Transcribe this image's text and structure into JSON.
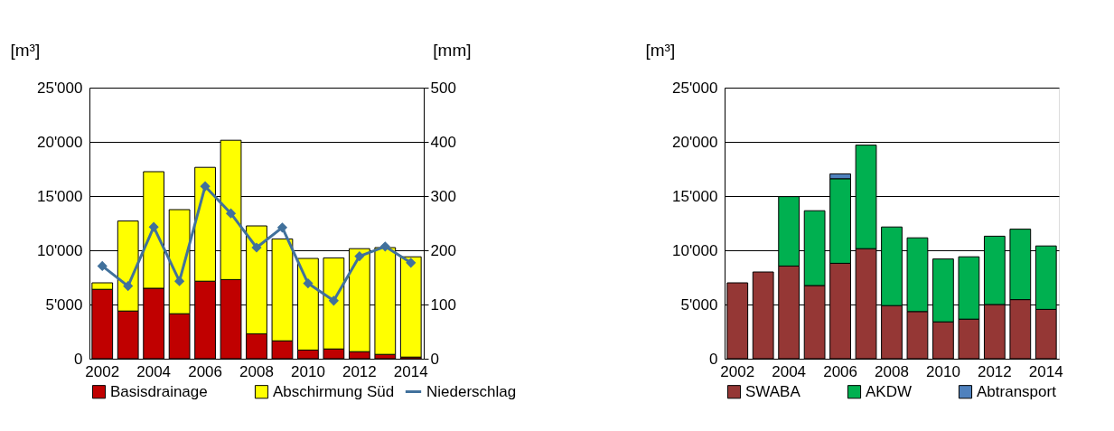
{
  "chart_data": [
    {
      "type": "bar",
      "stacked": true,
      "categories": [
        "2002",
        null,
        "2004",
        null,
        "2006",
        null,
        "2008",
        null,
        "2010",
        null,
        "2012",
        null,
        "2014"
      ],
      "ylabel": "[m³]",
      "y2label": "[mm]",
      "ylim": [
        0,
        25000
      ],
      "yticks": [
        0,
        {
          "value": 5000,
          "label": "5'000"
        },
        {
          "value": 10000,
          "label": "10'000"
        },
        {
          "value": 15000,
          "label": "15'000"
        },
        {
          "value": 20000,
          "label": "20'000"
        },
        {
          "value": 25000,
          "label": "25'000"
        }
      ],
      "y2lim": [
        0,
        500
      ],
      "y2ticks": [
        0,
        100,
        200,
        300,
        400,
        500
      ],
      "grid": "y",
      "legend": "bottom",
      "marker": "diamond",
      "line_style": "solid",
      "series": [
        {
          "name": "Basisdrainage",
          "color": "#c00000",
          "values": [
            6400,
            4400,
            6500,
            4150,
            7150,
            7300,
            2300,
            1650,
            800,
            900,
            650,
            400,
            150
          ]
        },
        {
          "name": "Abschirmung Süd",
          "color": "#ffff00",
          "values": [
            600,
            8300,
            10750,
            9600,
            10500,
            12850,
            9950,
            9400,
            8450,
            8400,
            9500,
            9850,
            9250
          ]
        },
        {
          "name": "Niederschlag",
          "color": "#41719c",
          "type": "line",
          "axis": "y2",
          "values": [
            171,
            134,
            243,
            143,
            318,
            268,
            205,
            242,
            139,
            107,
            189,
            207,
            177
          ]
        }
      ]
    },
    {
      "type": "bar",
      "stacked": true,
      "categories": [
        "2002",
        null,
        "2004",
        null,
        "2006",
        null,
        "2008",
        null,
        "2010",
        null,
        "2012",
        null,
        "2014"
      ],
      "ylabel": "[m³]",
      "ylim": [
        0,
        25000
      ],
      "yticks": [
        0,
        {
          "value": 5000,
          "label": "5'000"
        },
        {
          "value": 10000,
          "label": "10'000"
        },
        {
          "value": 15000,
          "label": "15'000"
        },
        {
          "value": 20000,
          "label": "20'000"
        },
        {
          "value": 25000,
          "label": "25'000"
        }
      ],
      "grid": "y",
      "legend": "bottom",
      "series": [
        {
          "name": "SWABA",
          "color": "#953735",
          "values": [
            7000,
            8000,
            8550,
            6750,
            8800,
            10150,
            4900,
            4350,
            3400,
            3650,
            5000,
            5450,
            4550
          ]
        },
        {
          "name": "AKDW",
          "color": "#00b050",
          "values": [
            null,
            null,
            6400,
            6900,
            7800,
            9550,
            7250,
            6800,
            5800,
            5750,
            6300,
            6500,
            5850
          ]
        },
        {
          "name": "Abtransport",
          "color": "#4f81bd",
          "values": [
            null,
            null,
            null,
            null,
            450,
            null,
            null,
            null,
            null,
            null,
            null,
            null,
            null
          ]
        }
      ]
    }
  ]
}
